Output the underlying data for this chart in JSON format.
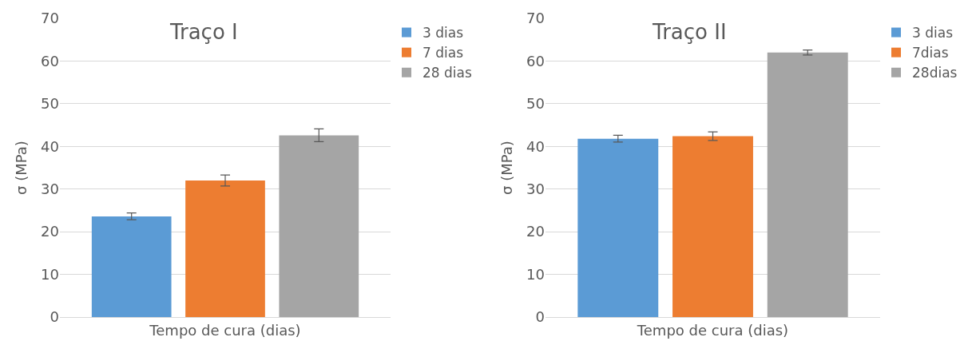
{
  "chart_data": [
    {
      "type": "bar",
      "title": "Traço I",
      "xlabel": "Tempo de cura (dias)",
      "ylabel": "σ (MPa)",
      "categories": [
        null
      ],
      "ylim": [
        0,
        70
      ],
      "yticks": [
        0,
        10,
        20,
        30,
        40,
        50,
        60,
        70
      ],
      "grid": "y",
      "legend": "top right",
      "series": [
        {
          "name": "3 dias",
          "color": "#5b9bd5",
          "values": [
            23.6
          ],
          "errors": [
            0.8
          ]
        },
        {
          "name": "7 dias",
          "color": "#ed7d31",
          "values": [
            32.0
          ],
          "errors": [
            1.3
          ]
        },
        {
          "name": "28 dias",
          "color": "#a5a5a5",
          "values": [
            42.6
          ],
          "errors": [
            1.5
          ]
        }
      ]
    },
    {
      "type": "bar",
      "title": "Traço II",
      "xlabel": "Tempo de cura (dias)",
      "ylabel": "σ (MPa)",
      "categories": [
        null
      ],
      "ylim": [
        0,
        70
      ],
      "yticks": [
        0,
        10,
        20,
        30,
        40,
        50,
        60,
        70
      ],
      "grid": "y",
      "legend": "top right",
      "series": [
        {
          "name": "3 dias",
          "color": "#5b9bd5",
          "values": [
            41.8
          ],
          "errors": [
            0.8
          ]
        },
        {
          "name": "7dias",
          "color": "#ed7d31",
          "values": [
            42.4
          ],
          "errors": [
            1.0
          ]
        },
        {
          "name": "28dias",
          "color": "#a5a5a5",
          "values": [
            62.0
          ],
          "errors": [
            0.6
          ]
        }
      ]
    }
  ]
}
